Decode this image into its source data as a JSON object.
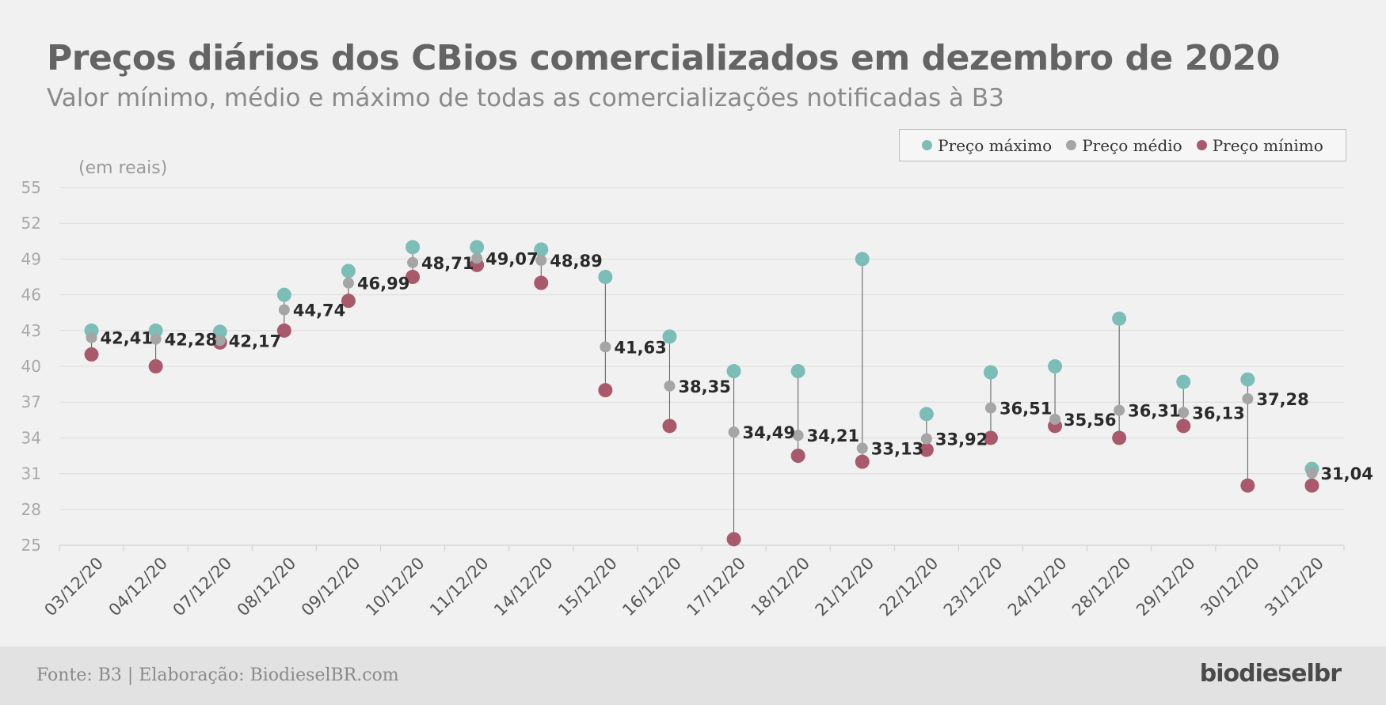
{
  "header": {
    "title": "Preços diários dos CBios comercializados em dezembro de 2020",
    "subtitle": "Valor mínimo, médio e máximo de todas as comercializações notificadas à B3"
  },
  "legend": {
    "items": [
      {
        "label": "Preço máximo",
        "color": "#7dbdb8"
      },
      {
        "label": "Preço médio",
        "color": "#a5a5a5"
      },
      {
        "label": "Preço mínimo",
        "color": "#a9596c"
      }
    ]
  },
  "footer": {
    "source": "Fonte: B3 | Elaboração: BiodieselBR.com",
    "brand": "biodieselbr"
  },
  "chart_data": {
    "type": "scatter",
    "title": "Preços diários dos CBios comercializados em dezembro de 2020",
    "subtitle": "Valor mínimo, médio e máximo de todas as comercializações notificadas à B3",
    "ylabel": "(em reais)",
    "xlabel": "",
    "ylim": [
      25,
      55
    ],
    "yticks": [
      25,
      28,
      31,
      34,
      37,
      40,
      43,
      46,
      49,
      52,
      55
    ],
    "grid": true,
    "legend_position": "top-right",
    "categories": [
      "03/12/20",
      "04/12/20",
      "07/12/20",
      "08/12/20",
      "09/12/20",
      "10/12/20",
      "11/12/20",
      "14/12/20",
      "15/12/20",
      "16/12/20",
      "17/12/20",
      "18/12/20",
      "21/12/20",
      "22/12/20",
      "23/12/20",
      "24/12/20",
      "28/12/20",
      "29/12/20",
      "30/12/20",
      "31/12/20"
    ],
    "series": [
      {
        "name": "Preço máximo",
        "color": "#7dbdb8",
        "values": [
          43,
          43,
          42.9,
          46,
          48,
          50,
          50,
          49.8,
          47.5,
          42.5,
          39.6,
          39.6,
          49,
          36,
          39.5,
          40,
          44,
          38.7,
          38.9,
          31.4
        ]
      },
      {
        "name": "Preço médio",
        "color": "#a5a5a5",
        "values": [
          42.41,
          42.28,
          42.17,
          44.74,
          46.99,
          48.71,
          49.07,
          48.89,
          41.63,
          38.35,
          34.49,
          34.21,
          33.13,
          33.92,
          36.51,
          35.56,
          36.31,
          36.13,
          37.28,
          31.04
        ]
      },
      {
        "name": "Preço mínimo",
        "color": "#a9596c",
        "values": [
          41,
          40,
          42,
          43,
          45.5,
          47.5,
          48.5,
          47,
          38,
          35,
          25.5,
          32.5,
          32,
          33,
          34,
          35,
          34,
          35,
          30,
          30
        ]
      }
    ],
    "data_labels": [
      "42,41",
      "42,28",
      "42,17",
      "44,74",
      "46,99",
      "48,71",
      "49,07",
      "48,89",
      "41,63",
      "38,35",
      "34,49",
      "34,21",
      "33,13",
      "33,92",
      "36,51",
      "35,56",
      "36,31",
      "36,13",
      "37,28",
      "31,04"
    ]
  }
}
